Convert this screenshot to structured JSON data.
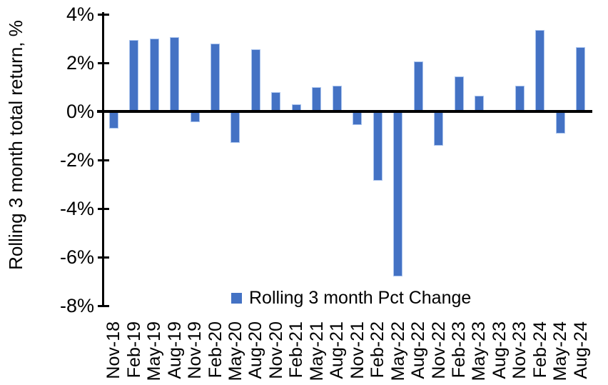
{
  "chart_data": {
    "type": "bar",
    "title": "",
    "ylabel": "Rolling 3 month total return, %",
    "xlabel": "",
    "categories": [
      "Nov-18",
      "Feb-19",
      "May-19",
      "Aug-19",
      "Nov-19",
      "Feb-20",
      "May-20",
      "Aug-20",
      "Nov-20",
      "Feb-21",
      "May-21",
      "Aug-21",
      "Nov-21",
      "Feb-22",
      "May-22",
      "Aug-22",
      "Nov-22",
      "Feb-23",
      "May-23",
      "Aug-23",
      "Nov-23",
      "Feb-24",
      "May-24",
      "Aug-24"
    ],
    "values": [
      -0.7,
      2.95,
      3.0,
      3.05,
      -0.45,
      2.8,
      -1.3,
      2.55,
      0.8,
      0.3,
      1.0,
      1.05,
      -0.55,
      -2.85,
      -6.8,
      2.05,
      -1.4,
      1.45,
      0.65,
      0.0,
      1.05,
      3.35,
      -0.9,
      2.65
    ],
    "ylim": [
      -8,
      4
    ],
    "ytick_values": [
      4,
      2,
      0,
      -2,
      -4,
      -6,
      -8
    ],
    "ytick_labels": [
      "4%",
      "2%",
      "0%",
      "-2%",
      "-4%",
      "-6%",
      "-8%"
    ],
    "grid": "off",
    "legend_position": "bottom-center",
    "legend": "Rolling 3 month Pct Change",
    "bar_color": "#4472C4",
    "axis_color": "#000000"
  }
}
